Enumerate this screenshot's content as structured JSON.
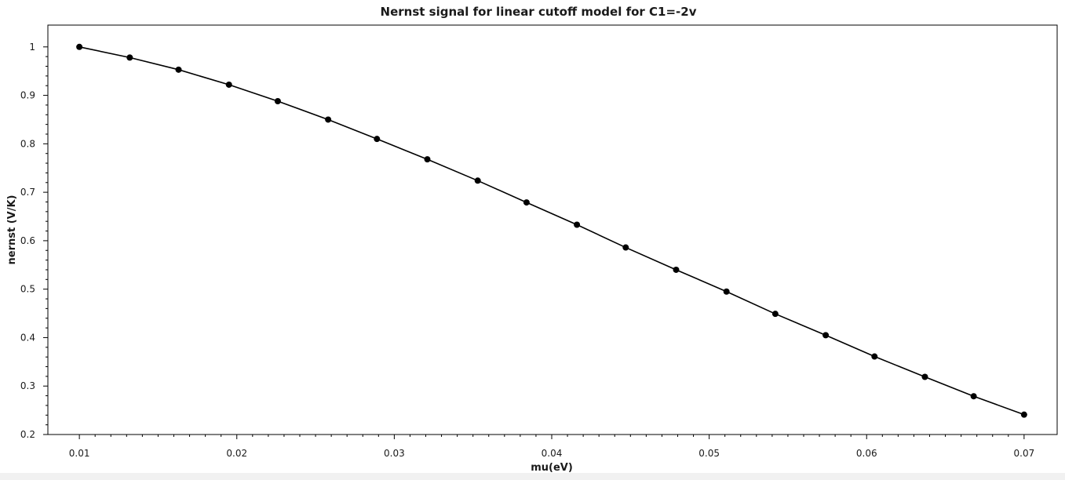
{
  "chart_data": {
    "type": "line",
    "title": "Nernst signal for linear cutoff model for C1=-2v",
    "xlabel": "mu(eV)",
    "ylabel": "nernst (V/K)",
    "xlim": [
      0.008,
      0.0721
    ],
    "ylim": [
      0.2,
      1.045
    ],
    "grid": false,
    "x_ticks": [
      "0.01",
      "0.02",
      "0.03",
      "0.04",
      "0.05",
      "0.06",
      "0.07"
    ],
    "y_ticks": [
      "0.2",
      "0.3",
      "0.4",
      "0.5",
      "0.6",
      "0.7",
      "0.8",
      "0.9",
      "1"
    ],
    "line_color": "#000000",
    "marker": "filled-circle",
    "series": [
      {
        "x": [
          0.01,
          0.0132,
          0.0163,
          0.0195,
          0.0226,
          0.0258,
          0.0289,
          0.0321,
          0.0353,
          0.0384,
          0.0416,
          0.0447,
          0.0479,
          0.0511,
          0.0542,
          0.0574,
          0.0605,
          0.0637,
          0.0668,
          0.07
        ],
        "y": [
          1.0,
          0.978,
          0.953,
          0.922,
          0.888,
          0.85,
          0.81,
          0.768,
          0.724,
          0.679,
          0.633,
          0.586,
          0.54,
          0.495,
          0.449,
          0.405,
          0.361,
          0.319,
          0.279,
          0.241
        ]
      }
    ]
  }
}
